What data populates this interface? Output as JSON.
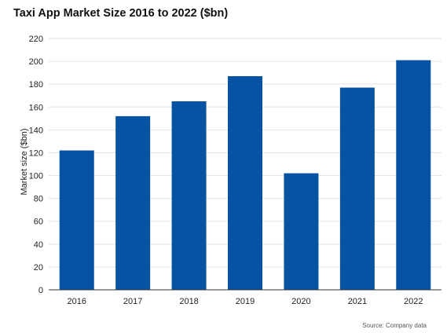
{
  "chart_data": {
    "type": "bar",
    "title": "Taxi App Market Size 2016 to 2022 ($bn)",
    "xlabel": "",
    "ylabel": "Market size ($bn)",
    "categories": [
      "2016",
      "2017",
      "2018",
      "2019",
      "2020",
      "2021",
      "2022"
    ],
    "values": [
      122,
      152,
      165,
      187,
      102,
      177,
      201
    ],
    "ylim": [
      0,
      220
    ],
    "yticks": [
      0,
      20,
      40,
      60,
      80,
      100,
      120,
      140,
      160,
      180,
      200,
      220
    ],
    "grid": true,
    "legend": "none",
    "bar_color": "#0652a3",
    "source": "Source: Company data"
  }
}
